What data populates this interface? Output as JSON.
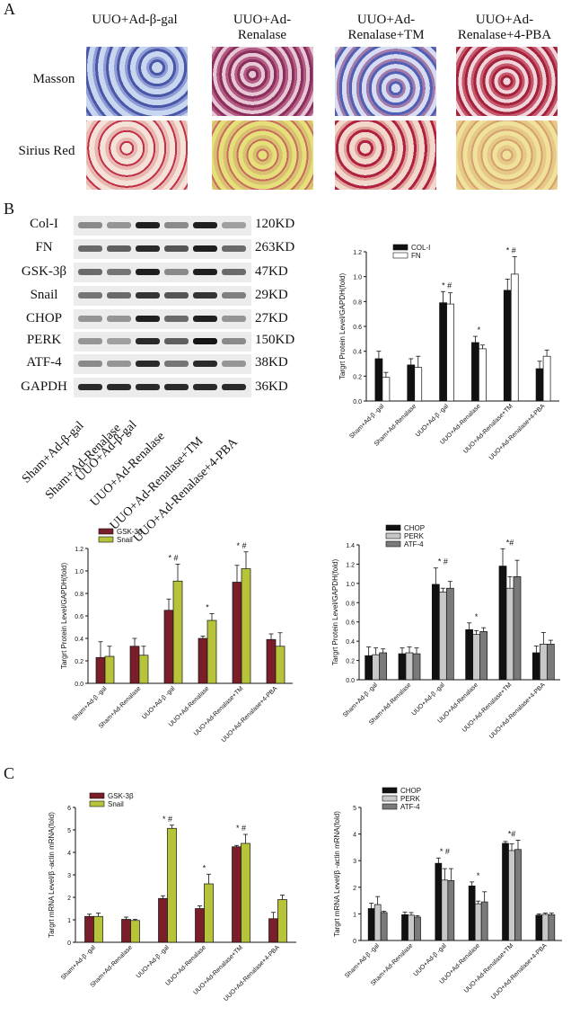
{
  "panels": {
    "A": "A",
    "B": "B",
    "C": "C"
  },
  "histology": {
    "columns": [
      "UUO+Ad-β-gal",
      "UUO+Ad-\nRenalase",
      "UUO+Ad-\nRenalase+TM",
      "UUO+Ad-\nRenalase+4-PBA"
    ],
    "rows": [
      "Masson",
      "Sirius Red"
    ]
  },
  "blots": {
    "proteins": [
      "Col-I",
      "FN",
      "GSK-3β",
      "Snail",
      "CHOP",
      "PERK",
      "ATF-4",
      "GAPDH"
    ],
    "sizes": [
      "120KD",
      "263KD",
      "47KD",
      "29KD",
      "27KD",
      "150KD",
      "38KD",
      "36KD"
    ],
    "lanes": [
      "Sham+Ad-β-gal",
      "Sham+Ad-Renalase",
      "UUO+Ad-β-gal",
      "UUO+Ad-Renalase",
      "UUO+Ad-Renalase+TM",
      "UUO+Ad-Renalase+4-PBA"
    ]
  },
  "colors": {
    "black": "#111111",
    "white": "#ffffff",
    "gsk": "#7a1e2a",
    "snail": "#b7c43a",
    "perk": "#c8c8c8",
    "atf": "#7a7a7a"
  },
  "chart_data": [
    {
      "type": "bar",
      "ylabel": "Targrt Protein Level/GAPDH(fold)",
      "ylim": [
        0,
        1.2
      ],
      "yticks": [
        "0.0",
        "0.2",
        "0.4",
        "0.6",
        "0.8",
        "1.0",
        "1.2"
      ],
      "categories": [
        "Sham+Ad-β -gal",
        "Sham+Ad-Renalase",
        "UUO+Ad-β -gal",
        "UUO+Ad-Renalase",
        "UUO+Ad-Renalase+TM",
        "UUO+Ad-Renalase+4-PBA"
      ],
      "legend": "top-left",
      "series": [
        {
          "name": "COL-I",
          "values": [
            0.34,
            0.29,
            0.79,
            0.47,
            0.89,
            0.26
          ],
          "errors": [
            0.06,
            0.05,
            0.09,
            0.05,
            0.09,
            0.06
          ],
          "color": "#111111"
        },
        {
          "name": "FN",
          "values": [
            0.19,
            0.27,
            0.78,
            0.42,
            1.02,
            0.36
          ],
          "errors": [
            0.04,
            0.09,
            0.09,
            0.03,
            0.14,
            0.05
          ],
          "color": "#ffffff"
        }
      ],
      "annotations": [
        "",
        "",
        "* #",
        "*",
        "* #",
        ""
      ]
    },
    {
      "type": "bar",
      "ylabel": "Targrt Protein Level/GAPDH(fold)",
      "ylim": [
        0,
        1.2
      ],
      "yticks": [
        "0.0",
        "0.2",
        "0.4",
        "0.6",
        "0.8",
        "1.0",
        "1.2"
      ],
      "categories": [
        "Sham+Ad-β -gal",
        "Sham+Ad-Renalase",
        "UUO+Ad-β -gal",
        "UUO+Ad-Renalase",
        "UUO+Ad-Renalase+TM",
        "UUO+Ad-Renalase+4-PBA"
      ],
      "legend": "top-left",
      "series": [
        {
          "name": "GSK-3β",
          "values": [
            0.23,
            0.33,
            0.65,
            0.4,
            0.9,
            0.39
          ],
          "errors": [
            0.14,
            0.07,
            0.1,
            0.02,
            0.15,
            0.05
          ],
          "color": "#7a1e2a"
        },
        {
          "name": "Snail",
          "values": [
            0.24,
            0.25,
            0.91,
            0.56,
            1.02,
            0.33
          ],
          "errors": [
            0.09,
            0.08,
            0.15,
            0.06,
            0.15,
            0.12
          ],
          "color": "#b7c43a"
        }
      ],
      "annotations": [
        "",
        "",
        "* #",
        "*",
        "* #",
        ""
      ]
    },
    {
      "type": "bar",
      "ylabel": "Targrt Protein Level/GAPDH(fold)",
      "ylim": [
        0,
        1.4
      ],
      "yticks": [
        "0.0",
        "0.2",
        "0.4",
        "0.6",
        "0.8",
        "1.0",
        "1.2",
        "1.4"
      ],
      "categories": [
        "Sham+Ad-β -gal",
        "Sham+Ad-Renalase",
        "UUO+Ad-β -gal",
        "UUO+Ad-Renalase",
        "UUO+Ad-Renalase+TM",
        "UUO+Ad-Renalase+4-PBA"
      ],
      "legend": "top-left",
      "series": [
        {
          "name": "CHOP",
          "values": [
            0.25,
            0.27,
            0.99,
            0.52,
            1.18,
            0.28
          ],
          "errors": [
            0.09,
            0.06,
            0.17,
            0.07,
            0.18,
            0.07
          ],
          "color": "#111111"
        },
        {
          "name": "PERK",
          "values": [
            0.26,
            0.28,
            0.91,
            0.47,
            0.95,
            0.37
          ],
          "errors": [
            0.07,
            0.06,
            0.04,
            0.04,
            0.12,
            0.12
          ],
          "color": "#c8c8c8"
        },
        {
          "name": "ATF-4",
          "values": [
            0.28,
            0.27,
            0.95,
            0.5,
            1.07,
            0.37
          ],
          "errors": [
            0.04,
            0.06,
            0.07,
            0.04,
            0.17,
            0.04
          ],
          "color": "#7a7a7a"
        }
      ],
      "annotations": [
        "",
        "",
        "* #",
        "*",
        "*#",
        ""
      ]
    },
    {
      "type": "bar",
      "ylabel": "Targrt mRNA Level/β -actin mRNA(fold)",
      "ylim": [
        0,
        6
      ],
      "yticks": [
        "0",
        "1",
        "2",
        "3",
        "4",
        "5",
        "6"
      ],
      "categories": [
        "Sham+Ad-β -gal",
        "Sham+Ad-Renalase",
        "UUO+Ad-β -gal",
        "UUO+Ad-Renalase",
        "UUO+Ad-Renalase+TM",
        "UUO+Ad-Renalase+4-PBA"
      ],
      "legend": "top-left",
      "series": [
        {
          "name": "GSK-3β",
          "values": [
            1.15,
            1.02,
            1.95,
            1.5,
            4.25,
            1.05
          ],
          "errors": [
            0.1,
            0.1,
            0.12,
            0.12,
            0.06,
            0.28
          ],
          "color": "#7a1e2a"
        },
        {
          "name": "Snail",
          "values": [
            1.15,
            0.97,
            5.07,
            2.6,
            4.4,
            1.9
          ],
          "errors": [
            0.15,
            0.05,
            0.14,
            0.43,
            0.4,
            0.2
          ],
          "color": "#b7c43a"
        }
      ],
      "annotations": [
        "",
        "",
        "* #",
        "*",
        "* #",
        ""
      ]
    },
    {
      "type": "bar",
      "ylabel": "Targrt mRNA Level/β -actin mRNA(fold)",
      "ylim": [
        0,
        5
      ],
      "yticks": [
        "0",
        "1",
        "2",
        "3",
        "4",
        "5"
      ],
      "categories": [
        "Sham+Ad-β -gal",
        "Sham+Ad-Renalase",
        "UUO+Ad-β -gal",
        "UUO+Ad-Renalase",
        "UUO+Ad-Renalase+TM",
        "UUO+Ad-Renalase+4-PBA"
      ],
      "legend": "top-left",
      "series": [
        {
          "name": "CHOP",
          "values": [
            1.2,
            0.97,
            2.9,
            2.05,
            3.65,
            0.95
          ],
          "errors": [
            0.2,
            0.1,
            0.2,
            0.15,
            0.07,
            0.05
          ],
          "color": "#111111"
        },
        {
          "name": "PERK",
          "values": [
            1.35,
            0.95,
            2.27,
            1.38,
            3.38,
            0.98
          ],
          "errors": [
            0.3,
            0.1,
            0.43,
            0.1,
            0.25,
            0.05
          ],
          "color": "#c8c8c8"
        },
        {
          "name": "ATF-4",
          "values": [
            1.05,
            0.88,
            2.25,
            1.45,
            3.42,
            0.97
          ],
          "errors": [
            0.05,
            0.05,
            0.45,
            0.38,
            0.35,
            0.06
          ],
          "color": "#7a7a7a"
        }
      ],
      "annotations": [
        "",
        "",
        "* #",
        "*",
        "*#",
        ""
      ]
    }
  ]
}
